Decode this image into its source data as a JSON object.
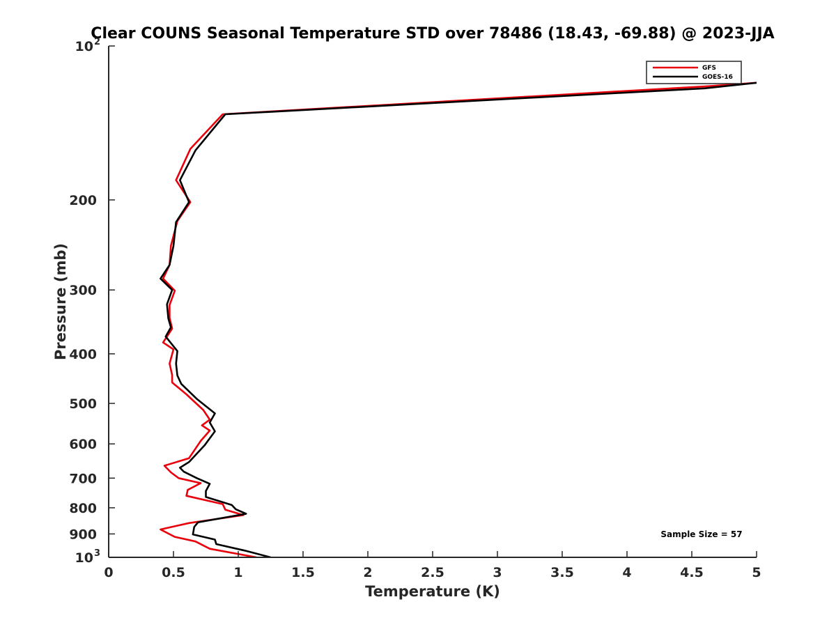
{
  "chart_data": {
    "type": "line",
    "title": "Clear COUNS Seasonal Temperature STD over 78486 (18.43, -69.88) @ 2023-JJA",
    "xlabel": "Temperature (K)",
    "ylabel": "Pressure (mb)",
    "xlim": [
      0,
      5
    ],
    "ylim": [
      100,
      1000
    ],
    "yscale": "log",
    "y_reversed": true,
    "x_ticks": [
      0,
      0.5,
      1,
      1.5,
      2,
      2.5,
      3,
      3.5,
      4,
      4.5,
      5
    ],
    "x_tick_labels": [
      "0",
      "0.5",
      "1",
      "1.5",
      "2",
      "2.5",
      "3",
      "3.5",
      "4",
      "4.5",
      "5"
    ],
    "y_ticks": [
      {
        "value": 100,
        "base": "10",
        "exp": "2"
      },
      {
        "value": 200,
        "label": "200"
      },
      {
        "value": 300,
        "label": "300"
      },
      {
        "value": 400,
        "label": "400"
      },
      {
        "value": 500,
        "label": "500"
      },
      {
        "value": 600,
        "label": "600"
      },
      {
        "value": 700,
        "label": "700"
      },
      {
        "value": 800,
        "label": "800"
      },
      {
        "value": 900,
        "label": "900"
      },
      {
        "value": 1000,
        "base": "10",
        "exp": "3"
      }
    ],
    "legend_position": "top-right",
    "sample_size_text": "Sample Size = 57",
    "series": [
      {
        "name": "GFS",
        "color": "#e8000b",
        "points": [
          [
            5.0,
            118
          ],
          [
            4.6,
            120
          ],
          [
            0.88,
            136
          ],
          [
            0.63,
            159
          ],
          [
            0.52,
            183
          ],
          [
            0.63,
            202
          ],
          [
            0.53,
            220
          ],
          [
            0.48,
            246
          ],
          [
            0.47,
            268
          ],
          [
            0.42,
            285
          ],
          [
            0.51,
            301
          ],
          [
            0.47,
            321
          ],
          [
            0.47,
            340
          ],
          [
            0.49,
            357
          ],
          [
            0.42,
            380
          ],
          [
            0.5,
            392
          ],
          [
            0.47,
            418
          ],
          [
            0.49,
            440
          ],
          [
            0.49,
            455
          ],
          [
            0.6,
            480
          ],
          [
            0.73,
            515
          ],
          [
            0.78,
            538
          ],
          [
            0.72,
            552
          ],
          [
            0.78,
            565
          ],
          [
            0.71,
            592
          ],
          [
            0.62,
            640
          ],
          [
            0.43,
            662
          ],
          [
            0.48,
            682
          ],
          [
            0.54,
            700
          ],
          [
            0.71,
            716
          ],
          [
            0.61,
            738
          ],
          [
            0.6,
            758
          ],
          [
            0.88,
            787
          ],
          [
            0.9,
            807
          ],
          [
            1.04,
            827
          ],
          [
            0.62,
            857
          ],
          [
            0.4,
            882
          ],
          [
            0.51,
            912
          ],
          [
            0.67,
            931
          ],
          [
            0.78,
            962
          ],
          [
            1.14,
            1000
          ]
        ]
      },
      {
        "name": "GOES-16",
        "color": "#000000",
        "points": [
          [
            5.0,
            118
          ],
          [
            4.6,
            121
          ],
          [
            0.9,
            136
          ],
          [
            0.67,
            160
          ],
          [
            0.55,
            183
          ],
          [
            0.62,
            202
          ],
          [
            0.52,
            221
          ],
          [
            0.5,
            246
          ],
          [
            0.47,
            268
          ],
          [
            0.4,
            285
          ],
          [
            0.49,
            300
          ],
          [
            0.45,
            320
          ],
          [
            0.46,
            341
          ],
          [
            0.48,
            355
          ],
          [
            0.44,
            370
          ],
          [
            0.53,
            395
          ],
          [
            0.52,
            418
          ],
          [
            0.53,
            441
          ],
          [
            0.56,
            458
          ],
          [
            0.68,
            490
          ],
          [
            0.82,
            523
          ],
          [
            0.78,
            545
          ],
          [
            0.82,
            567
          ],
          [
            0.74,
            604
          ],
          [
            0.62,
            651
          ],
          [
            0.55,
            668
          ],
          [
            0.58,
            680
          ],
          [
            0.68,
            700
          ],
          [
            0.78,
            718
          ],
          [
            0.75,
            742
          ],
          [
            0.75,
            762
          ],
          [
            0.95,
            790
          ],
          [
            0.98,
            805
          ],
          [
            1.06,
            822
          ],
          [
            0.69,
            854
          ],
          [
            0.66,
            872
          ],
          [
            0.65,
            902
          ],
          [
            0.82,
            923
          ],
          [
            0.83,
            942
          ],
          [
            1.05,
            970
          ],
          [
            1.25,
            1000
          ]
        ]
      }
    ]
  }
}
